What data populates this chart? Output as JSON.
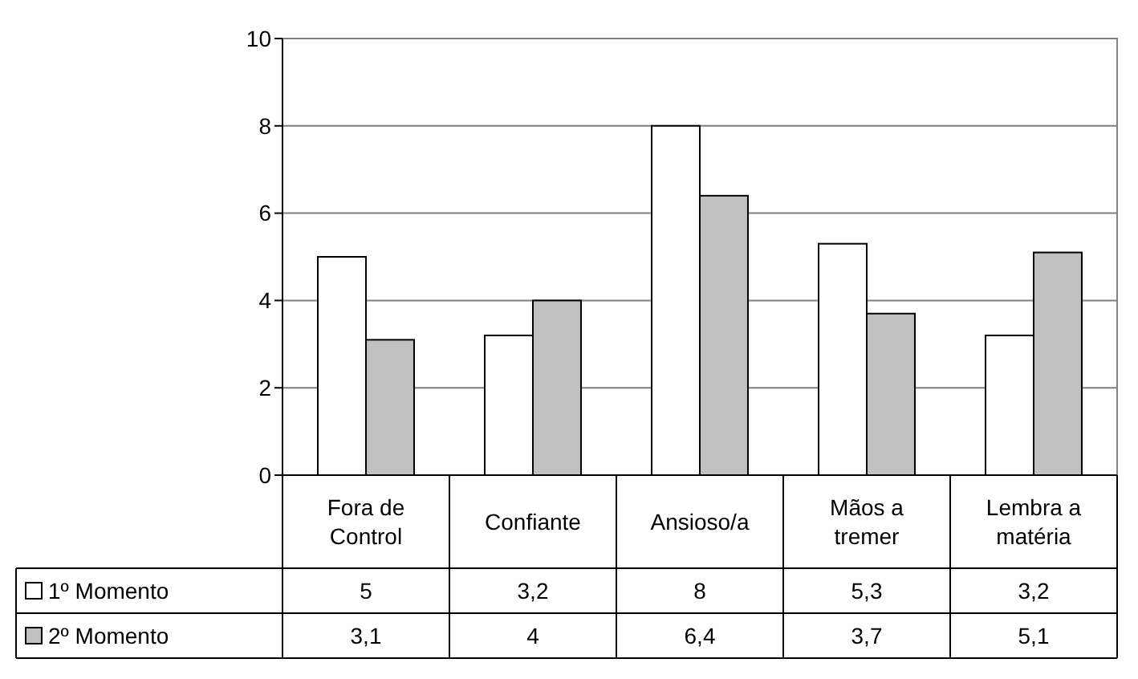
{
  "chart_data": {
    "type": "bar",
    "categories": [
      "Fora de Control",
      "Confiante",
      "Ansioso/a",
      "Mãos a tremer",
      "Lembra a matéria"
    ],
    "series": [
      {
        "name": "1º Momento",
        "color": "#ffffff",
        "values": [
          5,
          3.2,
          8,
          5.3,
          3.2
        ],
        "value_labels": [
          "5",
          "3,2",
          "8",
          "5,3",
          "3,2"
        ]
      },
      {
        "name": "2º Momento",
        "color": "#c0c0c0",
        "values": [
          3.1,
          4,
          6.4,
          3.7,
          5.1
        ],
        "value_labels": [
          "3,1",
          "4",
          "6,4",
          "3,7",
          "5,1"
        ]
      }
    ],
    "ylim": [
      0,
      10
    ],
    "yticks": [
      0,
      2,
      4,
      6,
      8,
      10
    ],
    "grid": "y",
    "legend": "bottom"
  }
}
